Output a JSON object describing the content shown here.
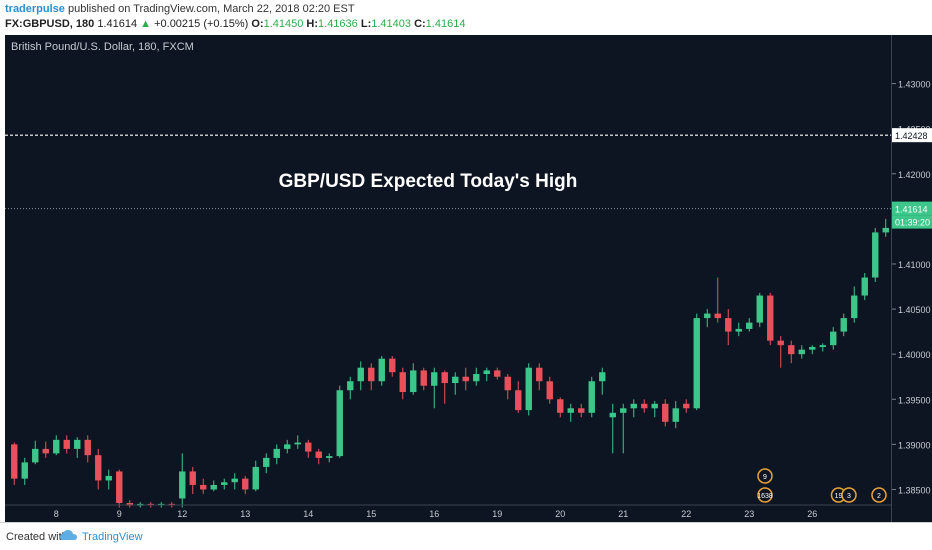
{
  "header": {
    "author": "traderpulse",
    "published_text": "published on TradingView.com, March 22, 2018 02:20 EST",
    "symbol": "FX:GBPUSD, 180",
    "last": "1.41614",
    "change": "+0.00215 (+0.15%)",
    "open_label": "O:",
    "open": "1.41450",
    "high_label": "H:",
    "high": "1.41636",
    "low_label": "L:",
    "low": "1.41403",
    "close_label": "C:",
    "close": "1.41614"
  },
  "footer": {
    "created": "Created with",
    "brand": "TradingView"
  },
  "chart_data": {
    "type": "candlestick",
    "title": "British Pound/U.S. Dollar, 180, FXCM",
    "annotation": "GBP/USD Expected Today's High",
    "ylim": [
      1.3835,
      1.4345
    ],
    "y_ticks": [
      "1.43000",
      "1.42500",
      "1.42000",
      "1.41500",
      "1.41000",
      "1.40500",
      "1.40000",
      "1.39500",
      "1.39000",
      "1.38500"
    ],
    "x_ticks": [
      {
        "label": "8",
        "i": 4.5
      },
      {
        "label": "9",
        "i": 10.5
      },
      {
        "label": "12",
        "i": 16.5
      },
      {
        "label": "13",
        "i": 22.5
      },
      {
        "label": "14",
        "i": 28.5
      },
      {
        "label": "15",
        "i": 34.5
      },
      {
        "label": "16",
        "i": 40.5
      },
      {
        "label": "19",
        "i": 46.5
      },
      {
        "label": "20",
        "i": 52.5
      },
      {
        "label": "21",
        "i": 58.5
      },
      {
        "label": "22",
        "i": 64.5
      },
      {
        "label": "23",
        "i": 70.5
      },
      {
        "label": "26",
        "i": 76.5
      }
    ],
    "dashed_level": {
      "value": 1.42428,
      "label": "1.42428"
    },
    "last_price": {
      "value": 1.41614,
      "label": "1.41614",
      "countdown": "01:39:20"
    },
    "x_slots": 82,
    "candles": [
      {
        "o": 1.39,
        "h": 1.3902,
        "l": 1.3855,
        "c": 1.3862
      },
      {
        "o": 1.3862,
        "h": 1.3885,
        "l": 1.3855,
        "c": 1.388
      },
      {
        "o": 1.388,
        "h": 1.3904,
        "l": 1.3878,
        "c": 1.3895
      },
      {
        "o": 1.3895,
        "h": 1.3903,
        "l": 1.3885,
        "c": 1.389
      },
      {
        "o": 1.389,
        "h": 1.391,
        "l": 1.3888,
        "c": 1.3905
      },
      {
        "o": 1.3905,
        "h": 1.391,
        "l": 1.389,
        "c": 1.3895
      },
      {
        "o": 1.3895,
        "h": 1.3908,
        "l": 1.3885,
        "c": 1.3905
      },
      {
        "o": 1.3905,
        "h": 1.391,
        "l": 1.388,
        "c": 1.3888
      },
      {
        "o": 1.3888,
        "h": 1.3895,
        "l": 1.385,
        "c": 1.386
      },
      {
        "o": 1.386,
        "h": 1.3872,
        "l": 1.385,
        "c": 1.3865
      },
      {
        "o": 1.387,
        "h": 1.3872,
        "l": 1.383,
        "c": 1.3835
      },
      {
        "o": 1.3835,
        "h": 1.3838,
        "l": 1.383,
        "c": 1.3832
      },
      {
        "o": 1.3832,
        "h": 1.3836,
        "l": 1.383,
        "c": 1.3834
      },
      {
        "o": 1.3834,
        "h": 1.3836,
        "l": 1.383,
        "c": 1.3833
      },
      {
        "o": 1.3833,
        "h": 1.3836,
        "l": 1.383,
        "c": 1.3834
      },
      {
        "o": 1.3834,
        "h": 1.3836,
        "l": 1.383,
        "c": 1.3833
      },
      {
        "o": 1.384,
        "h": 1.389,
        "l": 1.383,
        "c": 1.387
      },
      {
        "o": 1.387,
        "h": 1.3875,
        "l": 1.3845,
        "c": 1.3855
      },
      {
        "o": 1.3855,
        "h": 1.3862,
        "l": 1.3845,
        "c": 1.385
      },
      {
        "o": 1.385,
        "h": 1.386,
        "l": 1.3848,
        "c": 1.3855
      },
      {
        "o": 1.3855,
        "h": 1.3862,
        "l": 1.385,
        "c": 1.3858
      },
      {
        "o": 1.3858,
        "h": 1.3868,
        "l": 1.385,
        "c": 1.3862
      },
      {
        "o": 1.3862,
        "h": 1.3865,
        "l": 1.3845,
        "c": 1.385
      },
      {
        "o": 1.385,
        "h": 1.3882,
        "l": 1.3848,
        "c": 1.3875
      },
      {
        "o": 1.3875,
        "h": 1.389,
        "l": 1.3868,
        "c": 1.3885
      },
      {
        "o": 1.3885,
        "h": 1.39,
        "l": 1.3878,
        "c": 1.3895
      },
      {
        "o": 1.3895,
        "h": 1.3905,
        "l": 1.389,
        "c": 1.39
      },
      {
        "o": 1.39,
        "h": 1.391,
        "l": 1.3895,
        "c": 1.3902
      },
      {
        "o": 1.3902,
        "h": 1.3905,
        "l": 1.3885,
        "c": 1.3892
      },
      {
        "o": 1.3892,
        "h": 1.3895,
        "l": 1.3878,
        "c": 1.3885
      },
      {
        "o": 1.3885,
        "h": 1.389,
        "l": 1.388,
        "c": 1.3887
      },
      {
        "o": 1.3887,
        "h": 1.3965,
        "l": 1.3885,
        "c": 1.396
      },
      {
        "o": 1.396,
        "h": 1.3975,
        "l": 1.395,
        "c": 1.397
      },
      {
        "o": 1.397,
        "h": 1.3992,
        "l": 1.396,
        "c": 1.3985
      },
      {
        "o": 1.3985,
        "h": 1.399,
        "l": 1.396,
        "c": 1.397
      },
      {
        "o": 1.397,
        "h": 1.3998,
        "l": 1.3965,
        "c": 1.3995
      },
      {
        "o": 1.3995,
        "h": 1.3998,
        "l": 1.3975,
        "c": 1.398
      },
      {
        "o": 1.398,
        "h": 1.3985,
        "l": 1.395,
        "c": 1.3958
      },
      {
        "o": 1.3958,
        "h": 1.399,
        "l": 1.3955,
        "c": 1.3982
      },
      {
        "o": 1.3982,
        "h": 1.3985,
        "l": 1.396,
        "c": 1.3965
      },
      {
        "o": 1.3965,
        "h": 1.3985,
        "l": 1.394,
        "c": 1.398
      },
      {
        "o": 1.398,
        "h": 1.3982,
        "l": 1.3945,
        "c": 1.3968
      },
      {
        "o": 1.3968,
        "h": 1.398,
        "l": 1.3955,
        "c": 1.3975
      },
      {
        "o": 1.3975,
        "h": 1.3985,
        "l": 1.396,
        "c": 1.397
      },
      {
        "o": 1.397,
        "h": 1.3985,
        "l": 1.3965,
        "c": 1.3978
      },
      {
        "o": 1.3978,
        "h": 1.3985,
        "l": 1.397,
        "c": 1.3982
      },
      {
        "o": 1.3982,
        "h": 1.3985,
        "l": 1.3972,
        "c": 1.3975
      },
      {
        "o": 1.3975,
        "h": 1.3978,
        "l": 1.395,
        "c": 1.396
      },
      {
        "o": 1.396,
        "h": 1.397,
        "l": 1.3935,
        "c": 1.3938
      },
      {
        "o": 1.3938,
        "h": 1.399,
        "l": 1.3932,
        "c": 1.3985
      },
      {
        "o": 1.3985,
        "h": 1.399,
        "l": 1.396,
        "c": 1.397
      },
      {
        "o": 1.397,
        "h": 1.3975,
        "l": 1.3945,
        "c": 1.395
      },
      {
        "o": 1.395,
        "h": 1.3952,
        "l": 1.393,
        "c": 1.3935
      },
      {
        "o": 1.3935,
        "h": 1.3945,
        "l": 1.3925,
        "c": 1.394
      },
      {
        "o": 1.394,
        "h": 1.3945,
        "l": 1.393,
        "c": 1.3935
      },
      {
        "o": 1.3935,
        "h": 1.3975,
        "l": 1.393,
        "c": 1.397
      },
      {
        "o": 1.397,
        "h": 1.3985,
        "l": 1.3955,
        "c": 1.398
      },
      {
        "o": 1.393,
        "h": 1.3945,
        "l": 1.389,
        "c": 1.3935
      },
      {
        "o": 1.3935,
        "h": 1.3945,
        "l": 1.389,
        "c": 1.394
      },
      {
        "o": 1.394,
        "h": 1.395,
        "l": 1.393,
        "c": 1.3945
      },
      {
        "o": 1.3945,
        "h": 1.395,
        "l": 1.3935,
        "c": 1.394
      },
      {
        "o": 1.394,
        "h": 1.3948,
        "l": 1.393,
        "c": 1.3945
      },
      {
        "o": 1.3945,
        "h": 1.395,
        "l": 1.392,
        "c": 1.3925
      },
      {
        "o": 1.3925,
        "h": 1.3948,
        "l": 1.3918,
        "c": 1.394
      }
    ],
    "candles_b": [
      {
        "o": 1.3945,
        "h": 1.395,
        "l": 1.3935,
        "c": 1.394
      },
      {
        "o": 1.394,
        "h": 1.4045,
        "l": 1.3938,
        "c": 1.404
      },
      {
        "o": 1.404,
        "h": 1.405,
        "l": 1.403,
        "c": 1.4045
      },
      {
        "o": 1.4045,
        "h": 1.4085,
        "l": 1.4035,
        "c": 1.404
      },
      {
        "o": 1.404,
        "h": 1.405,
        "l": 1.401,
        "c": 1.4025
      },
      {
        "o": 1.4025,
        "h": 1.4035,
        "l": 1.402,
        "c": 1.4028
      },
      {
        "o": 1.4028,
        "h": 1.404,
        "l": 1.4025,
        "c": 1.4035
      },
      {
        "o": 1.4035,
        "h": 1.4068,
        "l": 1.403,
        "c": 1.4065
      },
      {
        "o": 1.4065,
        "h": 1.4068,
        "l": 1.401,
        "c": 1.4015
      },
      {
        "o": 1.4015,
        "h": 1.402,
        "l": 1.3985,
        "c": 1.401
      },
      {
        "o": 1.401,
        "h": 1.4015,
        "l": 1.399,
        "c": 1.4
      },
      {
        "o": 1.4,
        "h": 1.401,
        "l": 1.3995,
        "c": 1.4005
      },
      {
        "o": 1.4005,
        "h": 1.401,
        "l": 1.4,
        "c": 1.4008
      },
      {
        "o": 1.4008,
        "h": 1.4012,
        "l": 1.4003,
        "c": 1.401
      },
      {
        "o": 1.401,
        "h": 1.403,
        "l": 1.4005,
        "c": 1.4025
      },
      {
        "o": 1.4025,
        "h": 1.4045,
        "l": 1.402,
        "c": 1.404
      },
      {
        "o": 1.404,
        "h": 1.4075,
        "l": 1.4035,
        "c": 1.4065
      },
      {
        "o": 1.4065,
        "h": 1.409,
        "l": 1.406,
        "c": 1.4085
      },
      {
        "o": 1.4085,
        "h": 1.414,
        "l": 1.408,
        "c": 1.4135
      },
      {
        "o": 1.4135,
        "h": 1.415,
        "l": 1.413,
        "c": 1.414
      },
      {
        "o": 1.414,
        "h": 1.4168,
        "l": 1.4138,
        "c": 1.416
      },
      {
        "o": 1.416,
        "h": 1.4165,
        "l": 1.414,
        "c": 1.4145
      },
      {
        "o": 1.4145,
        "h": 1.4165,
        "l": 1.414,
        "c": 1.4161
      }
    ],
    "events": [
      {
        "i": 72,
        "label": "9"
      },
      {
        "i": 72,
        "label": "1638"
      },
      {
        "i": 79,
        "label": "19"
      },
      {
        "i": 80,
        "label": "3"
      },
      {
        "i": 84,
        "label": "2"
      }
    ]
  }
}
